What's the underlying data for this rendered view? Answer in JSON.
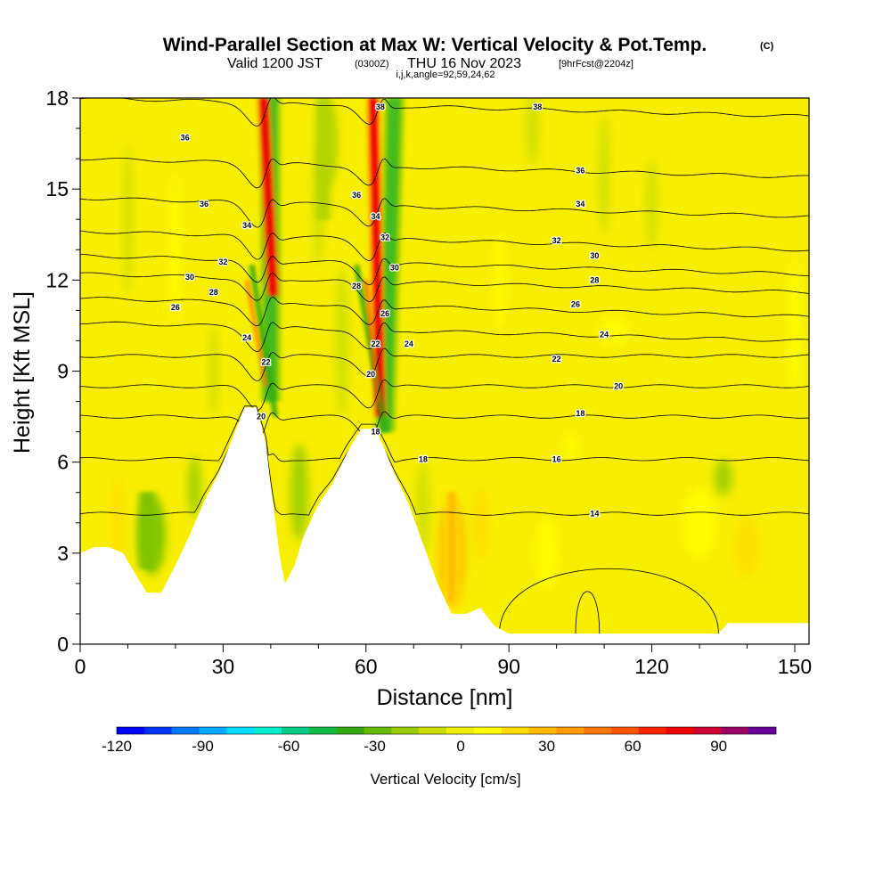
{
  "chart_data": {
    "type": "heatmap",
    "title": "Wind-Parallel Section at Max W: Vertical Velocity & Pot.Temp.",
    "copyright": "(C)",
    "subtitle": {
      "valid": "Valid 1200 JST",
      "utc": "(0300Z)",
      "date": "THU 16 Nov 2023",
      "forecast": "[9hrFcst@2204z]"
    },
    "grid_info": "i,j,k,angle=92,59,24,62",
    "xlabel": "Distance [nm]",
    "ylabel": "Height [Kft MSL]",
    "xlim": [
      0,
      153
    ],
    "ylim": [
      0,
      18
    ],
    "xticks": [
      0,
      30,
      60,
      90,
      120,
      150
    ],
    "yticks": [
      0,
      3,
      6,
      9,
      12,
      15,
      18
    ],
    "colorbar": {
      "label": "Vertical Velocity [cm/s]",
      "ticks": [
        -120,
        -90,
        -60,
        -30,
        0,
        30,
        60,
        90
      ],
      "min": -120,
      "max": 110,
      "colors": [
        "#0000ff",
        "#0033ff",
        "#0077ff",
        "#00aaff",
        "#00ddff",
        "#00eecc",
        "#00cc88",
        "#11bb44",
        "#33aa11",
        "#66bb00",
        "#99cc00",
        "#ccdd00",
        "#eeee00",
        "#ffff00",
        "#ffdd00",
        "#ffbb00",
        "#ff9900",
        "#ff7700",
        "#ff5500",
        "#ff2200",
        "#ee0000",
        "#cc0033",
        "#990066",
        "#660099"
      ]
    },
    "terrain_kft": [
      [
        0,
        3.0
      ],
      [
        3,
        3.2
      ],
      [
        6,
        3.2
      ],
      [
        9,
        3.0
      ],
      [
        12,
        2.2
      ],
      [
        14,
        1.7
      ],
      [
        17,
        1.7
      ],
      [
        20,
        2.6
      ],
      [
        23,
        3.6
      ],
      [
        26,
        4.7
      ],
      [
        29,
        5.6
      ],
      [
        32,
        6.8
      ],
      [
        34.5,
        7.8
      ],
      [
        37,
        7.8
      ],
      [
        39,
        6.6
      ],
      [
        40,
        5.2
      ],
      [
        42,
        2.8
      ],
      [
        43,
        2.0
      ],
      [
        45,
        2.6
      ],
      [
        47,
        3.6
      ],
      [
        50,
        4.6
      ],
      [
        53,
        5.3
      ],
      [
        56,
        6.3
      ],
      [
        59,
        7.1
      ],
      [
        62,
        7.1
      ],
      [
        64,
        6.4
      ],
      [
        66,
        5.6
      ],
      [
        69,
        4.6
      ],
      [
        72,
        3.3
      ],
      [
        75,
        2.0
      ],
      [
        78,
        1.0
      ],
      [
        81,
        1.0
      ],
      [
        84,
        1.2
      ],
      [
        87,
        0.6
      ],
      [
        90,
        0.35
      ],
      [
        100,
        0.35
      ],
      [
        110,
        0.35
      ],
      [
        120,
        0.35
      ],
      [
        130,
        0.35
      ],
      [
        134,
        0.35
      ],
      [
        136,
        0.7
      ],
      [
        142,
        0.7
      ],
      [
        148,
        0.7
      ],
      [
        153,
        0.7
      ]
    ],
    "theta_contour_levels": [
      14,
      16,
      18,
      20,
      22,
      24,
      26,
      28,
      30,
      32,
      34,
      36,
      38
    ],
    "theta_contour_heights_kft": [
      {
        "level": 14,
        "z": 4.3
      },
      {
        "level": 16,
        "z": 6.1
      },
      {
        "level": 18,
        "z": 7.5
      },
      {
        "level": 20,
        "z": 8.5
      },
      {
        "level": 22,
        "z": 9.5
      },
      {
        "level": 24,
        "z": 10.3
      },
      {
        "level": 26,
        "z": 11.1
      },
      {
        "level": 28,
        "z": 11.9
      },
      {
        "level": 30,
        "z": 12.5
      },
      {
        "level": 32,
        "z": 13.3
      },
      {
        "level": 34,
        "z": 14.4
      },
      {
        "level": 36,
        "z": 15.7
      },
      {
        "level": 38,
        "z": 17.7
      }
    ],
    "contour_labels": [
      {
        "text": "36",
        "x": 22,
        "z": 16.7
      },
      {
        "text": "36",
        "x": 26,
        "z": 14.5
      },
      {
        "text": "34",
        "x": 35,
        "z": 13.8
      },
      {
        "text": "32",
        "x": 30,
        "z": 12.6
      },
      {
        "text": "30",
        "x": 23,
        "z": 12.1
      },
      {
        "text": "28",
        "x": 28,
        "z": 11.6
      },
      {
        "text": "26",
        "x": 20,
        "z": 11.1
      },
      {
        "text": "24",
        "x": 35,
        "z": 10.1
      },
      {
        "text": "22",
        "x": 39,
        "z": 9.3
      },
      {
        "text": "20",
        "x": 38,
        "z": 7.5
      },
      {
        "text": "38",
        "x": 63,
        "z": 17.7
      },
      {
        "text": "36",
        "x": 58,
        "z": 14.8
      },
      {
        "text": "34",
        "x": 62,
        "z": 14.1
      },
      {
        "text": "32",
        "x": 64,
        "z": 13.4
      },
      {
        "text": "30",
        "x": 66,
        "z": 12.4
      },
      {
        "text": "28",
        "x": 58,
        "z": 11.8
      },
      {
        "text": "26",
        "x": 64,
        "z": 10.9
      },
      {
        "text": "24",
        "x": 69,
        "z": 9.9
      },
      {
        "text": "22",
        "x": 62,
        "z": 9.9
      },
      {
        "text": "20",
        "x": 61,
        "z": 8.9
      },
      {
        "text": "18",
        "x": 62,
        "z": 7.0
      },
      {
        "text": "18",
        "x": 72,
        "z": 6.1
      },
      {
        "text": "38",
        "x": 96,
        "z": 17.7
      },
      {
        "text": "36",
        "x": 105,
        "z": 15.6
      },
      {
        "text": "34",
        "x": 105,
        "z": 14.5
      },
      {
        "text": "32",
        "x": 100,
        "z": 13.3
      },
      {
        "text": "30",
        "x": 108,
        "z": 12.8
      },
      {
        "text": "28",
        "x": 108,
        "z": 12.0
      },
      {
        "text": "26",
        "x": 104,
        "z": 11.2
      },
      {
        "text": "24",
        "x": 110,
        "z": 10.2
      },
      {
        "text": "22",
        "x": 100,
        "z": 9.4
      },
      {
        "text": "20",
        "x": 113,
        "z": 8.5
      },
      {
        "text": "18",
        "x": 105,
        "z": 7.6
      },
      {
        "text": "16",
        "x": 100,
        "z": 6.1
      },
      {
        "text": "14",
        "x": 108,
        "z": 4.3
      }
    ],
    "updraft_bands": [
      {
        "name": "updraft-1",
        "x_top": 38.5,
        "x_bottom": 40.5,
        "z_top": 18,
        "z_bottom": 11.5,
        "w_peak": 75
      },
      {
        "name": "updraft-2",
        "x_top": 61.5,
        "x_bottom": 63.0,
        "z_top": 18,
        "z_bottom": 7.5,
        "w_peak": 80
      },
      {
        "name": "updraft-low",
        "x_top": 78,
        "x_bottom": 78,
        "z_top": 5,
        "z_bottom": 1.5,
        "w_peak": 30
      }
    ],
    "downdraft_bands": [
      {
        "name": "downdraft-1",
        "x_top": 40,
        "x_bottom": 40,
        "z_top": 18,
        "z_bottom": 8,
        "w_peak": -45
      },
      {
        "name": "downdraft-2",
        "x_top": 66,
        "x_bottom": 64,
        "z_top": 18,
        "z_bottom": 7,
        "w_peak": -50
      },
      {
        "name": "downdraft-3",
        "x_top": 14,
        "x_bottom": 14,
        "z_top": 5,
        "z_bottom": 2.5,
        "w_peak": -25
      },
      {
        "name": "downdraft-4",
        "x_top": 51,
        "x_bottom": 51,
        "z_top": 18,
        "z_bottom": 14,
        "w_peak": -22
      }
    ]
  }
}
